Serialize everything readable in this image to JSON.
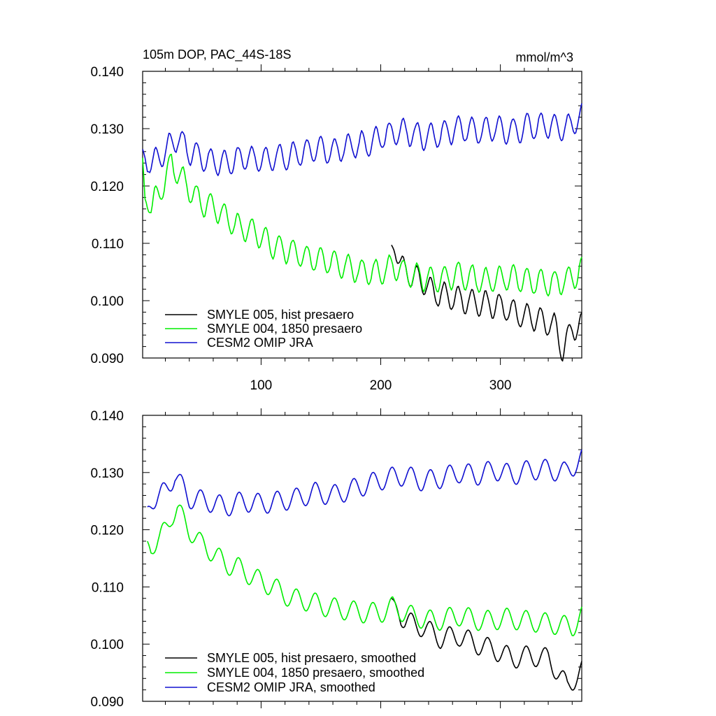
{
  "chart_data": [
    {
      "type": "line",
      "title": "105m DOP, PAC_44S-18S",
      "units": "mmol/m^3",
      "xlim": [
        1,
        368
      ],
      "ylim": [
        0.09,
        0.14
      ],
      "x_ticks": [
        100,
        200,
        300
      ],
      "x_tick_labels": [
        "100",
        "200",
        "300"
      ],
      "y_ticks": [
        0.09,
        0.1,
        0.11,
        0.12,
        0.13,
        0.14
      ],
      "y_tick_labels": [
        "0.090",
        "0.100",
        "0.110",
        "0.120",
        "0.130",
        "0.140"
      ],
      "legend_position": "bottom-left",
      "series": [
        {
          "name": "SMYLE 005, hist presaero",
          "color": "#000000",
          "start_x": 209,
          "anchors": [
            [
              209,
              0.1098
            ],
            [
              220,
              0.105
            ],
            [
              230,
              0.104
            ],
            [
              245,
              0.1015
            ],
            [
              260,
              0.1005
            ],
            [
              270,
              0.1
            ],
            [
              285,
              0.0995
            ],
            [
              300,
              0.099
            ],
            [
              315,
              0.0975
            ],
            [
              330,
              0.097
            ],
            [
              345,
              0.0955
            ],
            [
              352,
              0.0915
            ],
            [
              360,
              0.095
            ],
            [
              368,
              0.096
            ]
          ],
          "osc_amp": 0.0022,
          "osc_period": 11.5,
          "osc_phase": 1.4,
          "noise": 0.00035,
          "seed": 3
        },
        {
          "name": "SMYLE 004, 1850 presaero",
          "color": "#00ee00",
          "start_x": 1,
          "anchors": [
            [
              1,
              0.125
            ],
            [
              3,
              0.1175
            ],
            [
              8,
              0.1165
            ],
            [
              15,
              0.1185
            ],
            [
              25,
              0.124
            ],
            [
              30,
              0.1225
            ],
            [
              40,
              0.1195
            ],
            [
              50,
              0.117
            ],
            [
              60,
              0.1165
            ],
            [
              70,
              0.1145
            ],
            [
              80,
              0.113
            ],
            [
              95,
              0.112
            ],
            [
              110,
              0.1095
            ],
            [
              125,
              0.1085
            ],
            [
              140,
              0.1075
            ],
            [
              155,
              0.107
            ],
            [
              170,
              0.106
            ],
            [
              185,
              0.105
            ],
            [
              200,
              0.105
            ],
            [
              210,
              0.106
            ],
            [
              225,
              0.1045
            ],
            [
              245,
              0.1035
            ],
            [
              265,
              0.1045
            ],
            [
              285,
              0.1035
            ],
            [
              305,
              0.104
            ],
            [
              325,
              0.1035
            ],
            [
              345,
              0.103
            ],
            [
              360,
              0.104
            ],
            [
              368,
              0.1055
            ]
          ],
          "osc_amp": 0.0022,
          "osc_period": 11.5,
          "osc_phase": 1.4,
          "noise": 0.00035,
          "seed": 7
        },
        {
          "name": "CESM2 OMIP JRA",
          "color": "#1010d0",
          "start_x": 1,
          "anchors": [
            [
              1,
              0.1265
            ],
            [
              5,
              0.1235
            ],
            [
              15,
              0.125
            ],
            [
              30,
              0.1285
            ],
            [
              40,
              0.126
            ],
            [
              55,
              0.1245
            ],
            [
              70,
              0.124
            ],
            [
              85,
              0.125
            ],
            [
              100,
              0.1245
            ],
            [
              115,
              0.125
            ],
            [
              130,
              0.1255
            ],
            [
              145,
              0.1265
            ],
            [
              160,
              0.126
            ],
            [
              175,
              0.127
            ],
            [
              190,
              0.1275
            ],
            [
              205,
              0.129
            ],
            [
              220,
              0.1295
            ],
            [
              235,
              0.1285
            ],
            [
              250,
              0.129
            ],
            [
              265,
              0.13
            ],
            [
              280,
              0.1295
            ],
            [
              295,
              0.13
            ],
            [
              310,
              0.1295
            ],
            [
              325,
              0.1305
            ],
            [
              340,
              0.1305
            ],
            [
              355,
              0.13
            ],
            [
              368,
              0.132
            ]
          ],
          "osc_amp": 0.0022,
          "osc_period": 11.5,
          "osc_phase": 1.4,
          "noise": 0.00035,
          "seed": 11
        }
      ]
    },
    {
      "type": "line",
      "title": "",
      "xlim": [
        1,
        368
      ],
      "ylim": [
        0.09,
        0.14
      ],
      "x_ticks": [
        100,
        200,
        300
      ],
      "x_tick_labels": [],
      "y_ticks": [
        0.09,
        0.1,
        0.11,
        0.12,
        0.13,
        0.14
      ],
      "y_tick_labels": [
        "0.090",
        "0.100",
        "0.110",
        "0.120",
        "0.130",
        "0.140"
      ],
      "legend_position": "bottom-left",
      "series": [
        {
          "name": "SMYLE 005, hist presaero, smoothed",
          "color": "#000000",
          "start_x": 209,
          "anchors": [
            [
              209,
              0.108
            ],
            [
              220,
              0.104
            ],
            [
              235,
              0.103
            ],
            [
              250,
              0.101
            ],
            [
              265,
              0.1015
            ],
            [
              280,
              0.1
            ],
            [
              295,
              0.099
            ],
            [
              310,
              0.0975
            ],
            [
              325,
              0.098
            ],
            [
              340,
              0.0975
            ],
            [
              350,
              0.0945
            ],
            [
              356,
              0.0925
            ],
            [
              368,
              0.0955
            ]
          ],
          "osc_amp": 0.0018,
          "osc_period": 16,
          "osc_phase": 1.0,
          "noise": 0,
          "seed": 5
        },
        {
          "name": "SMYLE 004, 1850 presaero, smoothed",
          "color": "#00ee00",
          "start_x": 5,
          "anchors": [
            [
              5,
              0.118
            ],
            [
              8,
              0.1165
            ],
            [
              15,
              0.118
            ],
            [
              25,
              0.1225
            ],
            [
              30,
              0.1235
            ],
            [
              40,
              0.12
            ],
            [
              50,
              0.1175
            ],
            [
              60,
              0.116
            ],
            [
              70,
              0.114
            ],
            [
              80,
              0.1135
            ],
            [
              95,
              0.1115
            ],
            [
              110,
              0.11
            ],
            [
              125,
              0.108
            ],
            [
              140,
              0.1075
            ],
            [
              155,
              0.1065
            ],
            [
              170,
              0.106
            ],
            [
              185,
              0.1055
            ],
            [
              200,
              0.1055
            ],
            [
              210,
              0.1065
            ],
            [
              225,
              0.105
            ],
            [
              245,
              0.104
            ],
            [
              265,
              0.105
            ],
            [
              285,
              0.104
            ],
            [
              305,
              0.1045
            ],
            [
              325,
              0.104
            ],
            [
              345,
              0.1035
            ],
            [
              360,
              0.103
            ],
            [
              368,
              0.105
            ]
          ],
          "osc_amp": 0.0018,
          "osc_period": 16,
          "osc_phase": 1.0,
          "noise": 0,
          "seed": 9
        },
        {
          "name": "CESM2 OMIP JRA, smoothed",
          "color": "#1010d0",
          "start_x": 5,
          "anchors": [
            [
              5,
              0.124
            ],
            [
              15,
              0.1255
            ],
            [
              28,
              0.1295
            ],
            [
              40,
              0.1255
            ],
            [
              55,
              0.125
            ],
            [
              70,
              0.124
            ],
            [
              85,
              0.125
            ],
            [
              100,
              0.1245
            ],
            [
              115,
              0.125
            ],
            [
              130,
              0.1255
            ],
            [
              145,
              0.1265
            ],
            [
              160,
              0.126
            ],
            [
              175,
              0.127
            ],
            [
              190,
              0.128
            ],
            [
              205,
              0.129
            ],
            [
              220,
              0.1295
            ],
            [
              235,
              0.1285
            ],
            [
              250,
              0.129
            ],
            [
              265,
              0.13
            ],
            [
              280,
              0.1295
            ],
            [
              295,
              0.1305
            ],
            [
              310,
              0.1295
            ],
            [
              325,
              0.1305
            ],
            [
              340,
              0.1305
            ],
            [
              355,
              0.13
            ],
            [
              368,
              0.1325
            ]
          ],
          "osc_amp": 0.0018,
          "osc_period": 16,
          "osc_phase": 1.0,
          "noise": 0,
          "seed": 13
        }
      ]
    }
  ]
}
